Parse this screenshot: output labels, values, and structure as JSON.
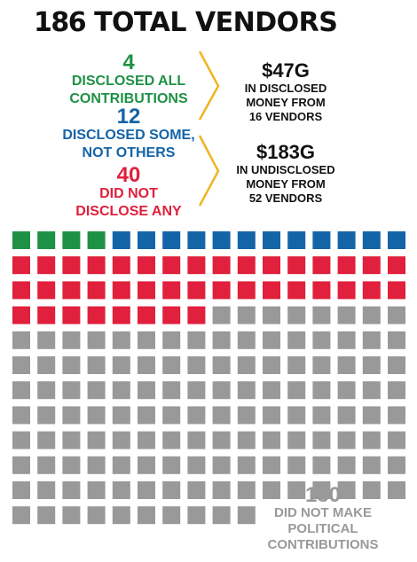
{
  "title": {
    "number": "186",
    "text": "TOTAL VENDORS"
  },
  "legend": [
    {
      "count": "4",
      "label_lines": [
        "DISCLOSED ALL",
        "CONTRIBUTIONS"
      ],
      "color": "#1e9146"
    },
    {
      "count": "12",
      "label_lines": [
        "DISCLOSED SOME,",
        "NOT OTHERS"
      ],
      "color": "#1464a8"
    },
    {
      "count": "40",
      "label_lines": [
        "DID NOT",
        "DISCLOSE ANY"
      ],
      "color": "#e0203c"
    }
  ],
  "money": [
    {
      "amount": "$47G",
      "lines": [
        "IN DISCLOSED",
        "MONEY FROM",
        "16 VENDORS"
      ]
    },
    {
      "amount": "$183G",
      "lines": [
        "IN UNDISCLOSED",
        "MONEY FROM",
        "52 VENDORS"
      ]
    }
  ],
  "no_contrib": {
    "count": "130",
    "label_lines": [
      "DID NOT MAKE",
      "POLITICAL",
      "CONTRIBUTIONS"
    ],
    "color": "#999999"
  },
  "colors": {
    "brace": "#f0b51e",
    "text": "#111111"
  },
  "chart_data": {
    "type": "waffle",
    "total": 186,
    "segments": [
      {
        "category": "Disclosed all contributions",
        "count": 4,
        "color": "#1e9146"
      },
      {
        "category": "Disclosed some, not others",
        "count": 12,
        "color": "#1464a8"
      },
      {
        "category": "Did not disclose any",
        "count": 40,
        "color": "#e0203c"
      },
      {
        "category": "Did not make political contributions",
        "count": 130,
        "color": "#999999"
      }
    ],
    "squares_per_row": 16
  }
}
